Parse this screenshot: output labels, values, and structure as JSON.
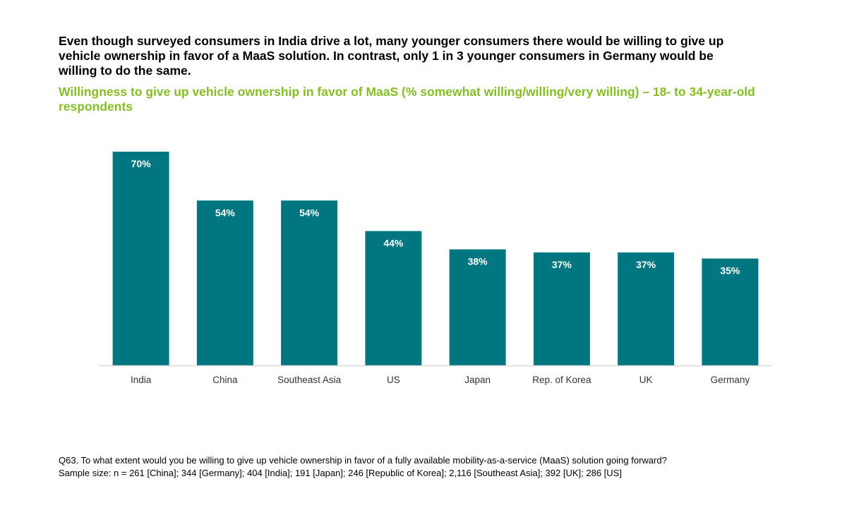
{
  "headline": "Even though surveyed consumers in India drive a lot, many younger consumers there would be willing to give up vehicle ownership in favor of a MaaS solution. In contrast, only 1 in 3 younger consumers in Germany would be willing to do the same.",
  "subtitle": "Willingness to give up vehicle ownership in favor of MaaS (% somewhat willing/willing/very willing) – 18- to 34-year-old respondents",
  "footnote": {
    "question": "Q63. To what extent would you be willing to give up vehicle ownership in favor of a fully available mobility-as-a-service (MaaS) solution going forward?",
    "sample": "Sample size: n = 261 [China]; 344 [Germany]; 404 [India]; 191 [Japan]; 246 [Republic of Korea]; 2,116 [Southeast Asia]; 392 [UK]; 286 [US]"
  },
  "chart_data": {
    "type": "bar",
    "categories": [
      "India",
      "China",
      "Southeast Asia",
      "US",
      "Japan",
      "Rep. of Korea",
      "UK",
      "Germany"
    ],
    "values": [
      70,
      54,
      54,
      44,
      38,
      37,
      37,
      35
    ],
    "value_labels": [
      "70%",
      "54%",
      "54%",
      "44%",
      "38%",
      "37%",
      "37%",
      "35%"
    ],
    "ylim": [
      0,
      70
    ],
    "grid": false,
    "bar_color": "#007680",
    "label_color": "#ffffff",
    "axis_color": "#d9d9d9"
  }
}
